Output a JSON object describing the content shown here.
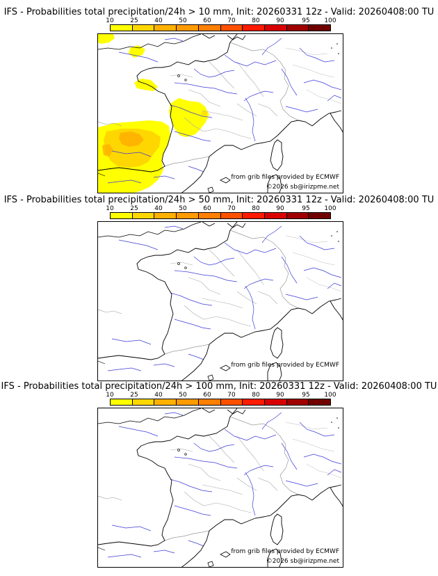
{
  "legend": {
    "ticks": [
      "10",
      "25",
      "40",
      "50",
      "60",
      "70",
      "80",
      "90",
      "95",
      "100"
    ],
    "colors": [
      "#ffff00",
      "#ffd700",
      "#ffb000",
      "#ff9a00",
      "#ff7f00",
      "#ff5000",
      "#ff1a00",
      "#d80000",
      "#a00000",
      "#700000"
    ]
  },
  "panels": [
    {
      "title": "IFS - Probabilities total precipitation/24h > 10 mm, Init: 20260331 12z - Valid: 20260408:00 TU",
      "credit_data": "from grib files provided by ECMWF",
      "credit_site": "©2026 sb@irizpme.net",
      "precip_areas": [
        "English Channel / Cornwall (light)",
        "Brittany west tip (light)",
        "Central-west France patch (light)",
        "Bay of Biscay (25-50%)"
      ]
    },
    {
      "title": "IFS - Probabilities total precipitation/24h > 50 mm, Init: 20260331 12z - Valid: 20260408:00 TU",
      "credit_data": "from grib files provided by ECMWF",
      "credit_site": "",
      "precip_areas": []
    },
    {
      "title": "IFS - Probabilities total precipitation/24h > 100 mm, Init: 20260331 12z - Valid: 20260408:00 TU",
      "credit_data": "from grib files provided by ECMWF",
      "credit_site": "©2026 sb@irizpme.net",
      "precip_areas": []
    }
  ]
}
